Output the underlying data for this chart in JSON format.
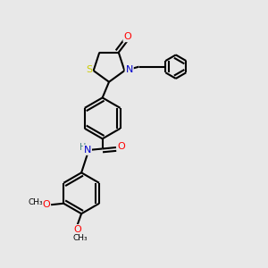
{
  "bg_color": "#e8e8e8",
  "atom_colors": {
    "C": "#000000",
    "N": "#0000cc",
    "O": "#ff0000",
    "S": "#cccc00",
    "H": "#408080"
  },
  "bond_color": "#000000",
  "lw": 1.5
}
